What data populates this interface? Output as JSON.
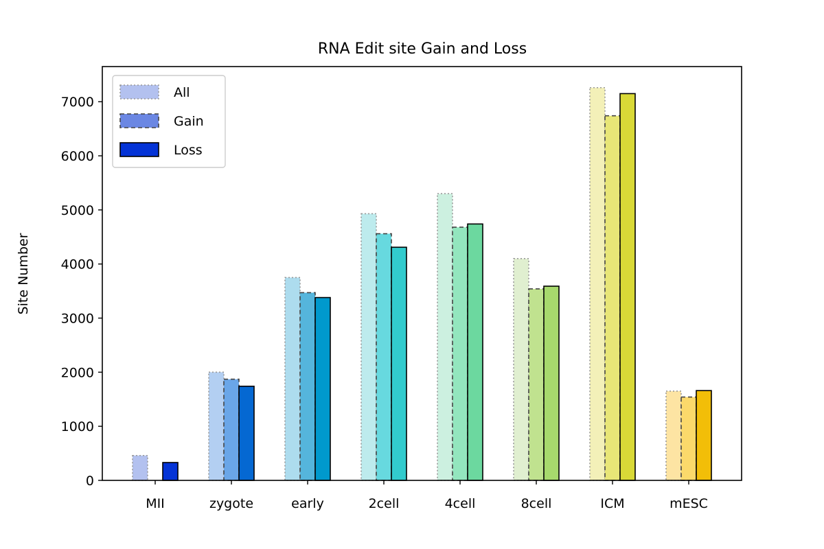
{
  "chart_data": {
    "type": "bar",
    "title": "RNA Edit site Gain and Loss",
    "xlabel": "",
    "ylabel": "Site Number",
    "ylim": [
      0,
      7650
    ],
    "yticks": [
      0,
      1000,
      2000,
      3000,
      4000,
      5000,
      6000,
      7000
    ],
    "grid": false,
    "legend_position": "top-left",
    "categories": [
      "MII",
      "zygote",
      "early",
      "2cell",
      "4cell",
      "8cell",
      "ICM",
      "mESC"
    ],
    "series": [
      {
        "name": "All",
        "edge_style": "dotted",
        "values": [
          460,
          2000,
          3750,
          4930,
          5300,
          4100,
          7260,
          1650
        ],
        "colors": [
          "#b3c1ef",
          "#b3cff2",
          "#addcee",
          "#bdebed",
          "#ccf0e0",
          "#e0efd0",
          "#f3f0b8",
          "#fde4a3"
        ],
        "legend_color": "#b3c1ef"
      },
      {
        "name": "Gain",
        "edge_style": "dashed",
        "values": [
          0,
          1870,
          3470,
          4560,
          4680,
          3540,
          6740,
          1540
        ],
        "colors": [
          "#6b87e3",
          "#6aa6e8",
          "#55b5dc",
          "#67d9df",
          "#93e6be",
          "#c0e28f",
          "#e8e677",
          "#fbd96b"
        ],
        "legend_color": "#6b87e3"
      },
      {
        "name": "Loss",
        "edge_style": "solid",
        "values": [
          330,
          1740,
          3380,
          4310,
          4740,
          3590,
          7150,
          1660
        ],
        "colors": [
          "#0433d6",
          "#0568d2",
          "#0099cd",
          "#32cbcd",
          "#6cd89f",
          "#a7d96d",
          "#d9d937",
          "#f2be08"
        ],
        "legend_color": "#0433d6"
      }
    ]
  }
}
